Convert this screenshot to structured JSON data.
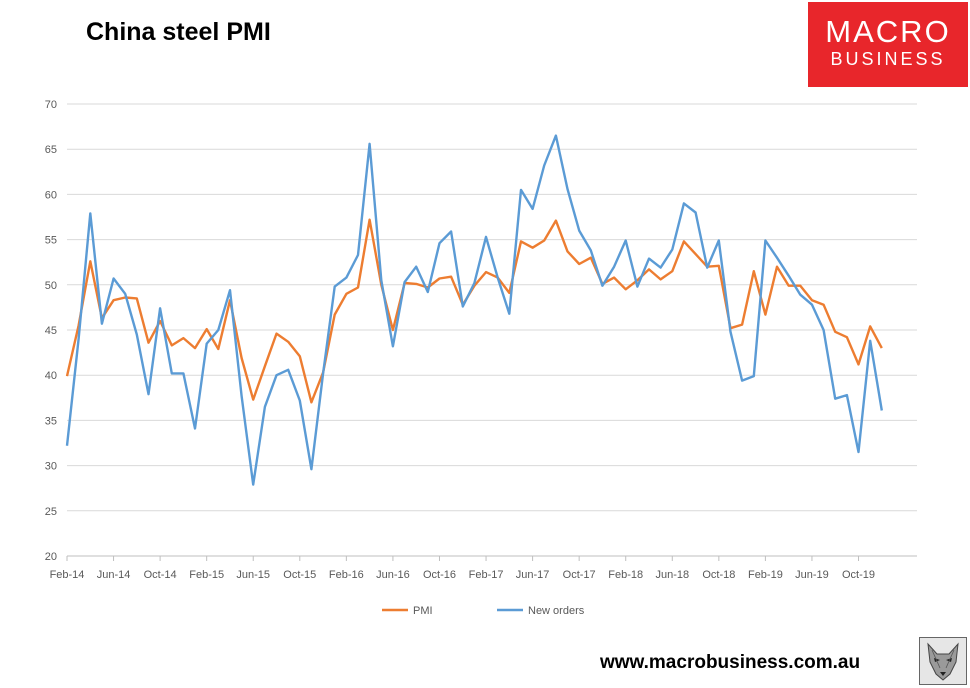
{
  "title": "China steel PMI",
  "logo": {
    "line1": "MACRO",
    "line2": "BUSINESS"
  },
  "footer_url": "www.macrobusiness.com.au",
  "chart_data": {
    "type": "line",
    "title": "China steel PMI",
    "x_tick_labels": [
      "Feb-14",
      "Jun-14",
      "Oct-14",
      "Feb-15",
      "Jun-15",
      "Oct-15",
      "Feb-16",
      "Jun-16",
      "Oct-16",
      "Feb-17",
      "Jun-17",
      "Oct-17",
      "Feb-18",
      "Jun-18",
      "Oct-18",
      "Feb-19",
      "Jun-19",
      "Oct-19"
    ],
    "x_start": "Feb-14",
    "y_ticks": [
      20,
      25,
      30,
      35,
      40,
      45,
      50,
      55,
      60,
      65,
      70
    ],
    "ylim": [
      20,
      70
    ],
    "grid": true,
    "legend_position": "bottom",
    "series": [
      {
        "name": "PMI",
        "color": "#ed7d31",
        "values": [
          39.9,
          45.5,
          52.6,
          46.3,
          48.3,
          48.6,
          48.5,
          43.6,
          46.0,
          43.3,
          44.1,
          43.0,
          45.1,
          42.9,
          48.3,
          41.9,
          37.3,
          41.0,
          44.6,
          43.7,
          42.1,
          37.0,
          40.3,
          46.7,
          49.0,
          49.7,
          57.2,
          50.0,
          45.0,
          50.2,
          50.1,
          49.7,
          50.7,
          50.9,
          47.8,
          49.9,
          51.4,
          50.8,
          49.1,
          54.8,
          54.1,
          54.9,
          57.1,
          53.7,
          52.3,
          53.0,
          50.1,
          50.8,
          49.5,
          50.5,
          51.7,
          50.6,
          51.5,
          54.8,
          53.4,
          52.0,
          52.1,
          45.2,
          45.6,
          51.5,
          46.7,
          52.0,
          49.9,
          49.9,
          48.3,
          47.8,
          44.8,
          44.2,
          41.2,
          45.4,
          43.0
        ]
      },
      {
        "name": "New orders",
        "color": "#5b9bd5",
        "values": [
          32.2,
          44.0,
          57.9,
          45.7,
          50.7,
          49.0,
          44.5,
          37.9,
          47.4,
          40.2,
          40.2,
          34.1,
          43.5,
          45.0,
          49.4,
          37.7,
          27.9,
          36.5,
          40.0,
          40.6,
          37.2,
          29.6,
          40.2,
          49.8,
          50.8,
          53.3,
          65.6,
          50.5,
          43.2,
          50.3,
          52.0,
          49.2,
          54.6,
          55.9,
          47.6,
          50.2,
          55.3,
          50.8,
          46.8,
          60.5,
          58.4,
          63.2,
          66.5,
          60.6,
          56.0,
          53.8,
          49.9,
          52.0,
          54.9,
          49.8,
          52.9,
          51.9,
          53.9,
          59.0,
          58.0,
          51.9,
          54.9,
          44.8,
          39.4,
          39.9,
          54.9,
          53.0,
          51.0,
          48.9,
          47.8,
          45.0,
          37.4,
          37.8,
          31.5,
          43.8,
          36.1
        ]
      }
    ]
  }
}
